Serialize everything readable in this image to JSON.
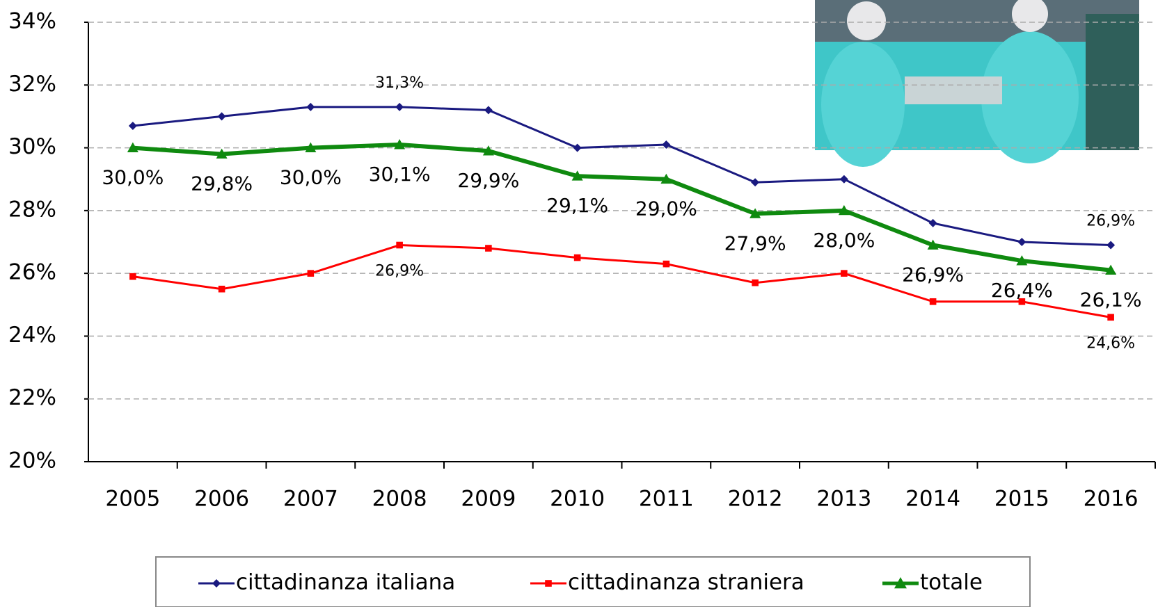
{
  "chart_data": {
    "type": "line",
    "categories": [
      "2005",
      "2006",
      "2007",
      "2008",
      "2009",
      "2010",
      "2011",
      "2012",
      "2013",
      "2014",
      "2015",
      "2016"
    ],
    "ylim": [
      20,
      34
    ],
    "yticks": [
      {
        "value": 20,
        "label": "20%"
      },
      {
        "value": 22,
        "label": "22%"
      },
      {
        "value": 24,
        "label": "24%"
      },
      {
        "value": 26,
        "label": "26%"
      },
      {
        "value": 28,
        "label": "28%"
      },
      {
        "value": 30,
        "label": "30%"
      },
      {
        "value": 32,
        "label": "32%"
      },
      {
        "value": 34,
        "label": "34%"
      }
    ],
    "grid": true,
    "legend": "bottom",
    "series": [
      {
        "name": "cittadinanza italiana",
        "color": "#1a1a80",
        "marker": "diamond",
        "values": [
          30.7,
          31.0,
          31.3,
          31.3,
          31.2,
          30.0,
          30.1,
          28.9,
          29.0,
          27.6,
          27.0,
          26.9
        ],
        "value_labels": [
          null,
          null,
          null,
          "31,3%",
          null,
          null,
          null,
          null,
          null,
          null,
          null,
          "26,9%"
        ]
      },
      {
        "name": "cittadinanza straniera",
        "color": "#ff0000",
        "marker": "square",
        "values": [
          25.9,
          25.5,
          26.0,
          26.9,
          26.8,
          26.5,
          26.3,
          25.7,
          26.0,
          25.1,
          25.1,
          24.6
        ],
        "value_labels": [
          null,
          null,
          null,
          "26,9%",
          null,
          null,
          null,
          null,
          null,
          null,
          null,
          "24,6%"
        ]
      },
      {
        "name": "totale",
        "color": "#0f8a0f",
        "marker": "triangle",
        "values": [
          30.0,
          29.8,
          30.0,
          30.1,
          29.9,
          29.1,
          29.0,
          27.9,
          28.0,
          26.9,
          26.4,
          26.1
        ],
        "value_labels": [
          "30,0%",
          "29,8%",
          "30,0%",
          "30,1%",
          "29,9%",
          "29,1%",
          "29,0%",
          "27,9%",
          "28,0%",
          "26,9%",
          "26,4%",
          "26,1%"
        ]
      }
    ]
  }
}
